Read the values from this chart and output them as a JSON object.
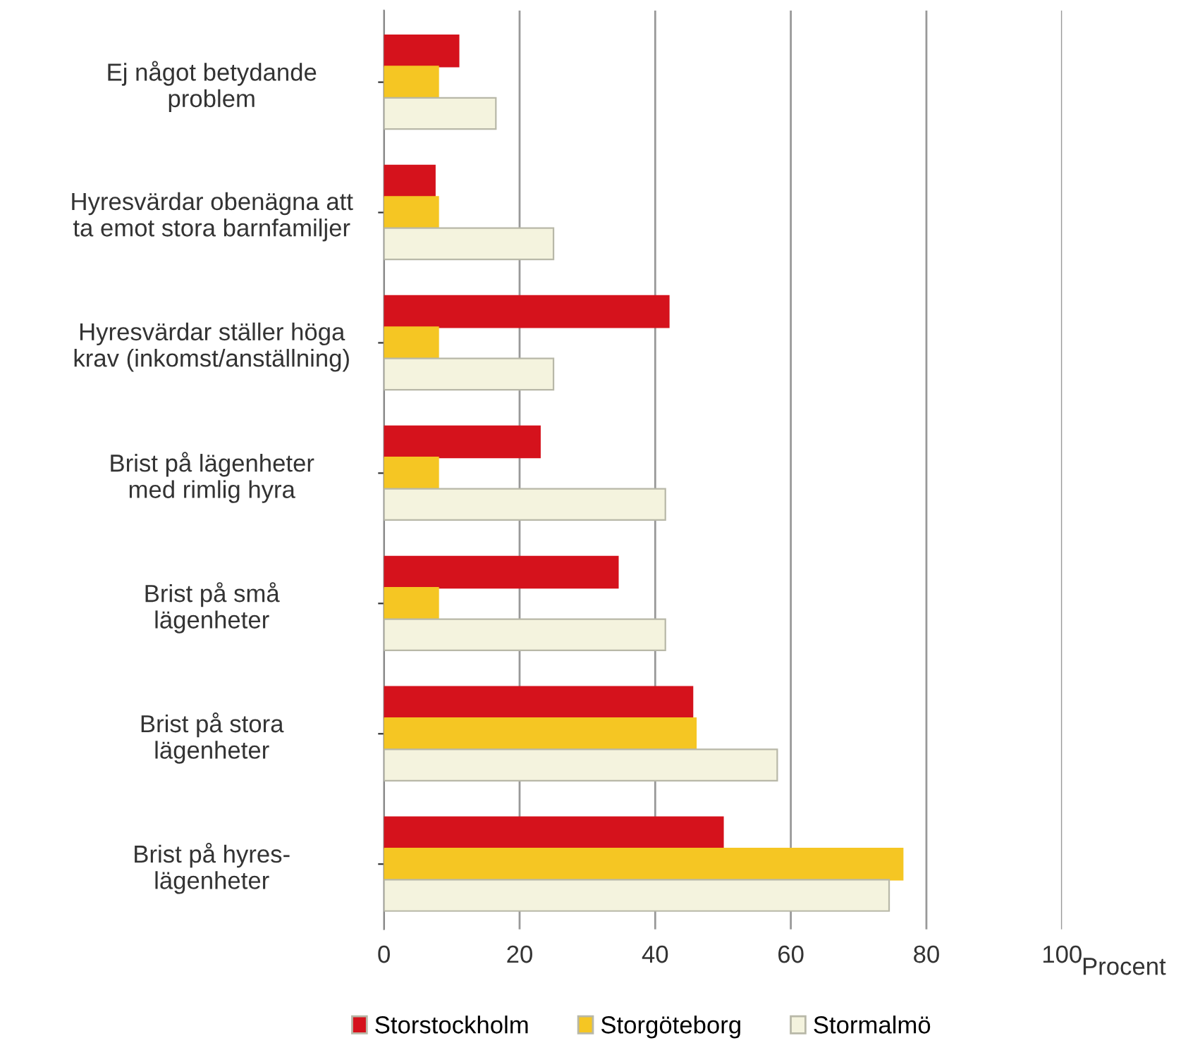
{
  "chart_data": {
    "type": "bar",
    "orientation": "horizontal",
    "xlabel": "Procent",
    "categories": [
      "Ej något betydande\nproblem",
      "Hyresvärdar obenägna att\nta emot stora barnfamiljer",
      "Hyresvärdar ställer höga\nkrav (inkomst/anställning)",
      "Brist på lägenheter\nmed rimlig hyra",
      "Brist på små\nlägenheter",
      "Brist på stora\nlägenheter",
      "Brist på hyres-\nlägenheter"
    ],
    "series": [
      {
        "name": "Storstockholm",
        "color": "#d5121c",
        "values": [
          11,
          7.5,
          42,
          23,
          34.5,
          45.5,
          50
        ]
      },
      {
        "name": "Storgöteborg",
        "color": "#f5c623",
        "values": [
          8,
          8,
          8,
          8,
          8,
          46,
          76.5
        ]
      },
      {
        "name": "Stormalmö",
        "color": "#f4f3de",
        "values": [
          16.5,
          25,
          25,
          41.5,
          41.5,
          58,
          74.5
        ]
      }
    ],
    "xlim": [
      0,
      100
    ],
    "xticks": [
      0,
      20,
      40,
      60,
      80,
      100
    ],
    "grid": "x",
    "legend": "bottom"
  }
}
